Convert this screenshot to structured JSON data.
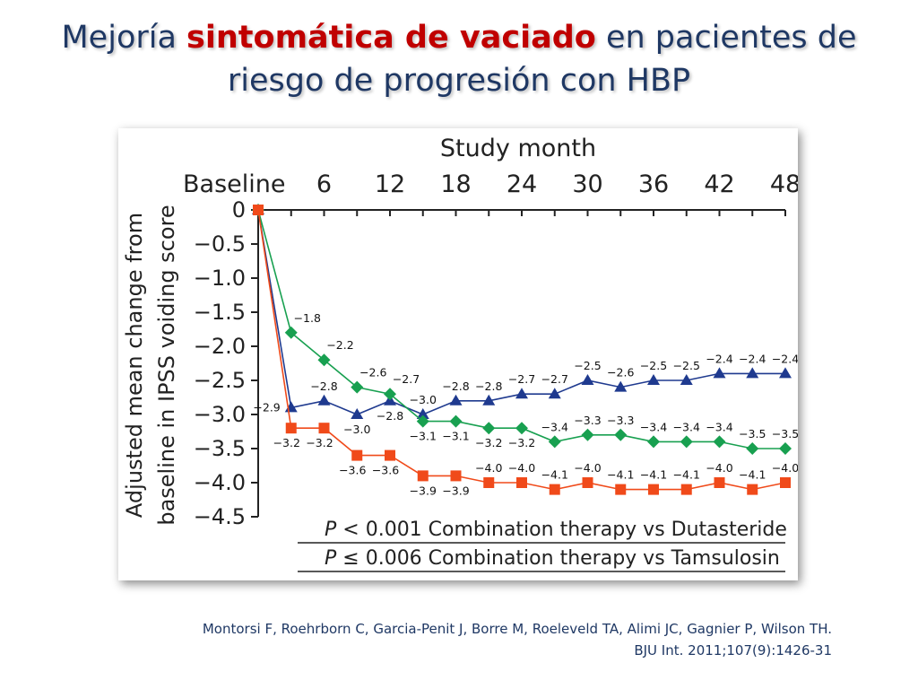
{
  "slide": {
    "title_part1": "Mejoría ",
    "title_highlight": "sintomática de vaciado",
    "title_part2": " en pacientes de riesgo de progresión con HBP",
    "title_color": "#1f3864",
    "highlight_color": "#c00000"
  },
  "chart_data": {
    "type": "line",
    "xlabel": "Study month",
    "ylabel_line1": "Adjusted mean change from",
    "ylabel_line2": "baseline in IPSS voiding score",
    "x_ticks": [
      "Baseline",
      "6",
      "12",
      "18",
      "24",
      "30",
      "36",
      "42",
      "48"
    ],
    "x_tick_values": [
      0,
      6,
      12,
      18,
      24,
      30,
      36,
      42,
      48
    ],
    "y_ticks": [
      "0",
      "−0.5",
      "−1.0",
      "−1.5",
      "−2.0",
      "−2.5",
      "−3.0",
      "−3.5",
      "−4.0",
      "−4.5"
    ],
    "y_tick_values": [
      0,
      -0.5,
      -1.0,
      -1.5,
      -2.0,
      -2.5,
      -3.0,
      -3.5,
      -4.0,
      -4.5
    ],
    "xlim": [
      0,
      48
    ],
    "ylim": [
      -4.5,
      0
    ],
    "grid": false,
    "x_axis_position": "top",
    "x": [
      0,
      3,
      6,
      9,
      12,
      15,
      18,
      21,
      24,
      27,
      30,
      33,
      36,
      39,
      42,
      45,
      48
    ],
    "series": [
      {
        "marker": "triangle",
        "color": "#1f3a8f",
        "values": [
          0,
          -2.9,
          -2.8,
          -3.0,
          -2.8,
          -3.0,
          -2.8,
          -2.8,
          -2.7,
          -2.7,
          -2.5,
          -2.6,
          -2.5,
          -2.5,
          -2.4,
          -2.4,
          -2.4
        ],
        "labels": [
          "",
          "−2.9",
          "−2.8",
          "−3.0",
          "−2.8",
          "−3.0",
          "−2.8",
          "−2.8",
          "−2.7",
          "−2.7",
          "−2.5",
          "−2.6",
          "−2.5",
          "−2.5",
          "−2.4",
          "−2.4",
          "−2.4"
        ]
      },
      {
        "marker": "diamond",
        "color": "#18a050",
        "values": [
          0,
          -1.8,
          -2.2,
          -2.6,
          -2.7,
          -3.1,
          -3.1,
          -3.2,
          -3.2,
          -3.4,
          -3.3,
          -3.3,
          -3.4,
          -3.4,
          -3.4,
          -3.5,
          -3.5
        ],
        "labels": [
          "",
          "−1.8",
          "−2.2",
          "−2.6",
          "−2.7",
          "−3.1",
          "−3.1",
          "−3.2",
          "−3.2",
          "−3.4",
          "−3.3",
          "−3.3",
          "−3.4",
          "−3.4",
          "−3.4",
          "−3.5",
          "−3.5"
        ]
      },
      {
        "marker": "square",
        "color": "#f04a1a",
        "values": [
          0,
          -3.2,
          -3.2,
          -3.6,
          -3.6,
          -3.9,
          -3.9,
          -4.0,
          -4.0,
          -4.1,
          -4.0,
          -4.1,
          -4.1,
          -4.1,
          -4.0,
          -4.1,
          -4.0
        ],
        "labels": [
          "",
          "−3.2",
          "−3.2",
          "−3.6",
          "−3.6",
          "−3.9",
          "−3.9",
          "−4.0",
          "−4.0",
          "−4.1",
          "−4.0",
          "−4.1",
          "−4.1",
          "−4.1",
          "−4.0",
          "−4.1",
          "−4.0"
        ]
      }
    ],
    "annotations": [
      {
        "p_symbol": "P",
        "text": " < 0.001 Combination therapy vs Dutasteride"
      },
      {
        "p_symbol": "P",
        "text": " ≤ 0.006 Combination therapy vs Tamsulosin"
      }
    ]
  },
  "citation": {
    "line1": "Montorsi F, Roehrborn C, Garcia-Penit J, Borre M, Roeleveld TA, Alimi JC, Gagnier P, Wilson TH.",
    "line2": "BJU Int. 2011;107(9):1426-31"
  }
}
